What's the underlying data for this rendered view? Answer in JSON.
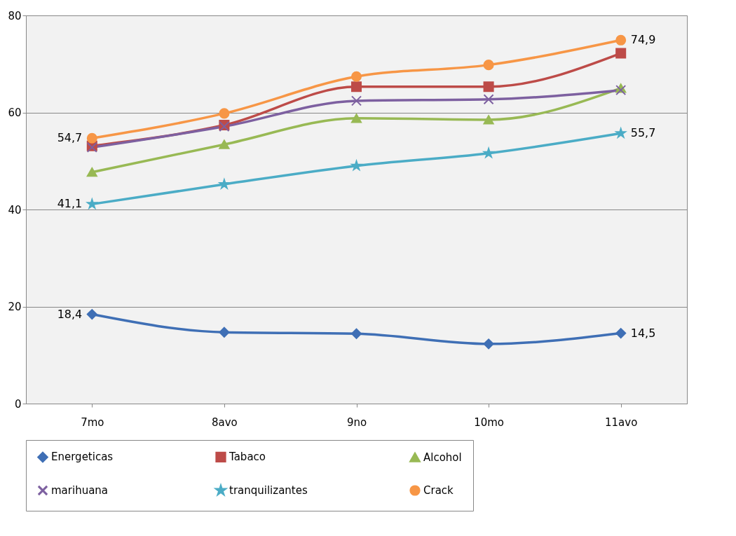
{
  "chart_data": {
    "type": "line",
    "categories": [
      "7mo",
      "8avo",
      "9no",
      "10mo",
      "11avo"
    ],
    "series": [
      {
        "name": "Energeticas",
        "color": "#3f6fb5",
        "marker": "diamond",
        "values": [
          18.4,
          14.7,
          14.4,
          12.3,
          14.5
        ],
        "value_labels": [
          "18,4",
          null,
          null,
          null,
          "14,5"
        ]
      },
      {
        "name": "Tabaco",
        "color": "#bd4b48",
        "marker": "square",
        "values": [
          53.1,
          57.4,
          65.3,
          65.3,
          72.2
        ]
      },
      {
        "name": "Alcohol",
        "color": "#98b954",
        "marker": "triangle",
        "values": [
          47.7,
          53.4,
          58.8,
          58.5,
          65.0
        ]
      },
      {
        "name": "marihuana",
        "color": "#7d60a0",
        "marker": "cross",
        "values": [
          52.8,
          57.1,
          62.4,
          62.7,
          64.6
        ]
      },
      {
        "name": "tranquilizantes",
        "color": "#4bacc6",
        "marker": "star",
        "values": [
          41.1,
          45.2,
          49.0,
          51.6,
          55.7
        ],
        "value_labels": [
          "41,1",
          null,
          null,
          null,
          "55,7"
        ]
      },
      {
        "name": "Crack",
        "color": "#f79646",
        "marker": "circle",
        "values": [
          54.7,
          59.8,
          67.4,
          69.8,
          74.9
        ],
        "value_labels": [
          "54,7",
          null,
          null,
          null,
          "74,9"
        ]
      }
    ],
    "ylim": [
      0,
      80
    ],
    "yticks": [
      0,
      20,
      40,
      60,
      80
    ],
    "grid": "y",
    "legend": "bottom",
    "line_style": "solid"
  }
}
